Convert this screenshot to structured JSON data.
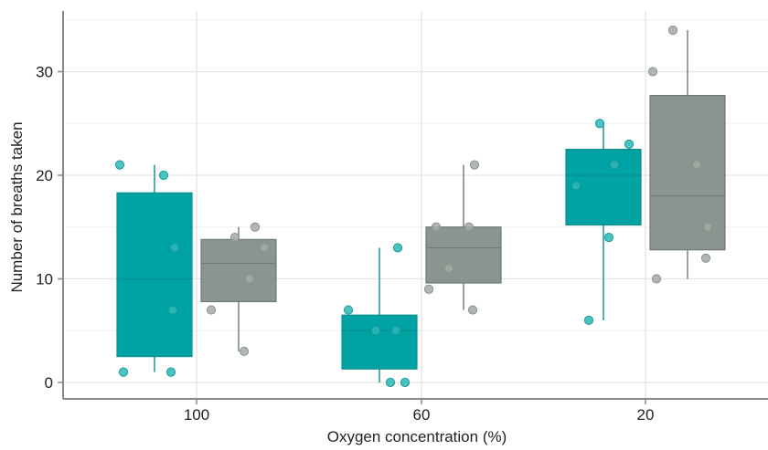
{
  "chart_data": {
    "type": "box",
    "title": "",
    "xlabel": "Oxygen concentration (%)",
    "ylabel": "Number of breaths taken",
    "categories": [
      "100",
      "60",
      "20"
    ],
    "yticks": [
      0,
      10,
      20,
      30
    ],
    "ylim": [
      -1.5,
      35.5
    ],
    "grid": true,
    "legend": "none",
    "series": [
      {
        "color": "#00a3a3",
        "boxes": [
          {
            "min": 1,
            "q1": 2.5,
            "median": 10,
            "q3": 18.3,
            "max": 21,
            "points": [
              21,
              20,
              13,
              7,
              1,
              1
            ]
          },
          {
            "min": 0,
            "q1": 1.3,
            "median": 5,
            "q3": 6.5,
            "max": 13,
            "points": [
              13,
              7,
              5,
              5,
              0,
              0
            ]
          },
          {
            "min": 6,
            "q1": 15.2,
            "median": 20,
            "q3": 22.5,
            "max": 25,
            "points": [
              25,
              23,
              21,
              19,
              14,
              6
            ]
          }
        ]
      },
      {
        "color": "#8a958f",
        "boxes": [
          {
            "min": 3,
            "q1": 7.8,
            "median": 11.5,
            "q3": 13.8,
            "max": 15,
            "points": [
              15,
              14,
              13,
              10,
              7,
              3
            ]
          },
          {
            "min": 7,
            "q1": 9.6,
            "median": 13,
            "q3": 15,
            "max": 21,
            "points": [
              21,
              15,
              15,
              11,
              9,
              7
            ]
          },
          {
            "min": 10,
            "q1": 12.8,
            "median": 18,
            "q3": 27.7,
            "max": 34,
            "points": [
              34,
              30,
              21,
              15,
              12,
              10
            ]
          }
        ]
      }
    ]
  }
}
